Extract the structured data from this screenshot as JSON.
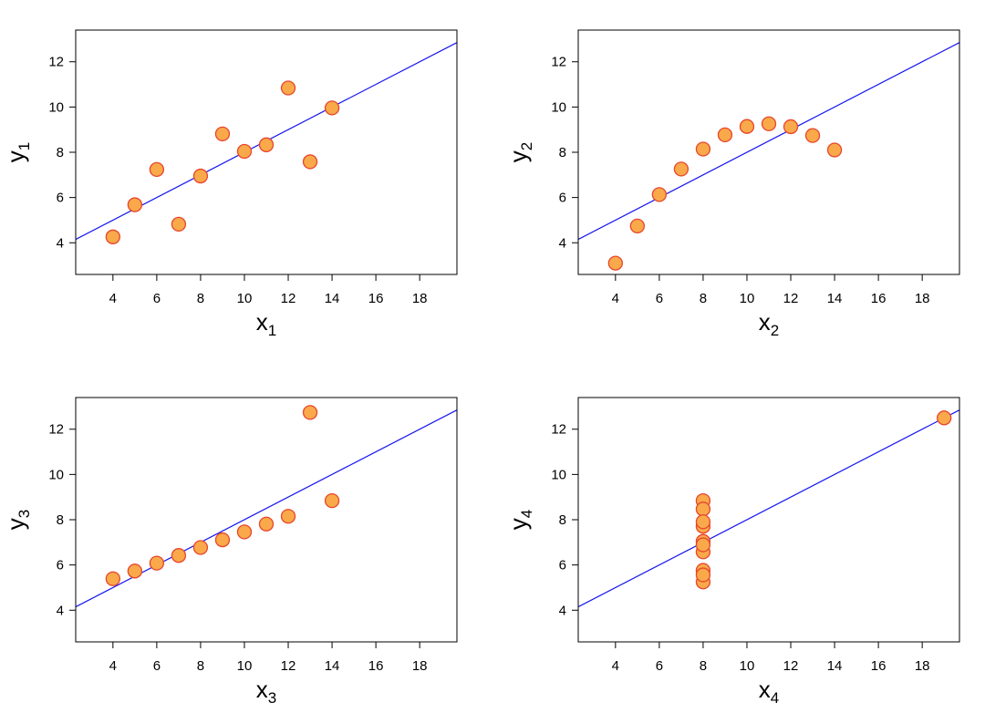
{
  "chart_data": [
    {
      "type": "scatter",
      "title": "",
      "xlabel": "x",
      "xlabel_sub": "1",
      "ylabel": "y",
      "ylabel_sub": "1",
      "xlim": [
        2.3,
        19.7
      ],
      "ylim": [
        2.6,
        13.4
      ],
      "xticks": [
        4,
        6,
        8,
        10,
        12,
        14,
        16,
        18
      ],
      "yticks": [
        4,
        6,
        8,
        10,
        12
      ],
      "x": [
        10,
        8,
        13,
        9,
        11,
        14,
        6,
        4,
        12,
        7,
        5
      ],
      "y": [
        8.04,
        6.95,
        7.58,
        8.81,
        8.33,
        9.96,
        7.24,
        4.26,
        10.84,
        4.82,
        5.68
      ],
      "fit_line": {
        "intercept": 3.0,
        "slope": 0.5
      },
      "grid": false
    },
    {
      "type": "scatter",
      "title": "",
      "xlabel": "x",
      "xlabel_sub": "2",
      "ylabel": "y",
      "ylabel_sub": "2",
      "xlim": [
        2.3,
        19.7
      ],
      "ylim": [
        2.6,
        13.4
      ],
      "xticks": [
        4,
        6,
        8,
        10,
        12,
        14,
        16,
        18
      ],
      "yticks": [
        4,
        6,
        8,
        10,
        12
      ],
      "x": [
        10,
        8,
        13,
        9,
        11,
        14,
        6,
        4,
        12,
        7,
        5
      ],
      "y": [
        9.14,
        8.14,
        8.74,
        8.77,
        9.26,
        8.1,
        6.13,
        3.1,
        9.13,
        7.26,
        4.74
      ],
      "fit_line": {
        "intercept": 3.0,
        "slope": 0.5
      },
      "grid": false
    },
    {
      "type": "scatter",
      "title": "",
      "xlabel": "x",
      "xlabel_sub": "3",
      "ylabel": "y",
      "ylabel_sub": "3",
      "xlim": [
        2.3,
        19.7
      ],
      "ylim": [
        2.6,
        13.4
      ],
      "xticks": [
        4,
        6,
        8,
        10,
        12,
        14,
        16,
        18
      ],
      "yticks": [
        4,
        6,
        8,
        10,
        12
      ],
      "x": [
        10,
        8,
        13,
        9,
        11,
        14,
        6,
        4,
        12,
        7,
        5
      ],
      "y": [
        7.46,
        6.77,
        12.74,
        7.11,
        7.81,
        8.84,
        6.08,
        5.39,
        8.15,
        6.42,
        5.73
      ],
      "fit_line": {
        "intercept": 3.0,
        "slope": 0.5
      },
      "grid": false
    },
    {
      "type": "scatter",
      "title": "",
      "xlabel": "x",
      "xlabel_sub": "4",
      "ylabel": "y",
      "ylabel_sub": "4",
      "xlim": [
        2.3,
        19.7
      ],
      "ylim": [
        2.6,
        13.4
      ],
      "xticks": [
        4,
        6,
        8,
        10,
        12,
        14,
        16,
        18
      ],
      "yticks": [
        4,
        6,
        8,
        10,
        12
      ],
      "x": [
        8,
        8,
        8,
        8,
        8,
        8,
        8,
        19,
        8,
        8,
        8
      ],
      "y": [
        6.58,
        5.76,
        7.71,
        8.84,
        8.47,
        7.04,
        5.25,
        12.5,
        5.56,
        7.91,
        6.89
      ],
      "fit_line": {
        "intercept": 3.0,
        "slope": 0.5
      },
      "grid": false
    }
  ],
  "style": {
    "point_fill": "#F9A94A",
    "point_stroke": "#E8452C",
    "line_color": "#1515F0",
    "frame_color": "#000000"
  }
}
